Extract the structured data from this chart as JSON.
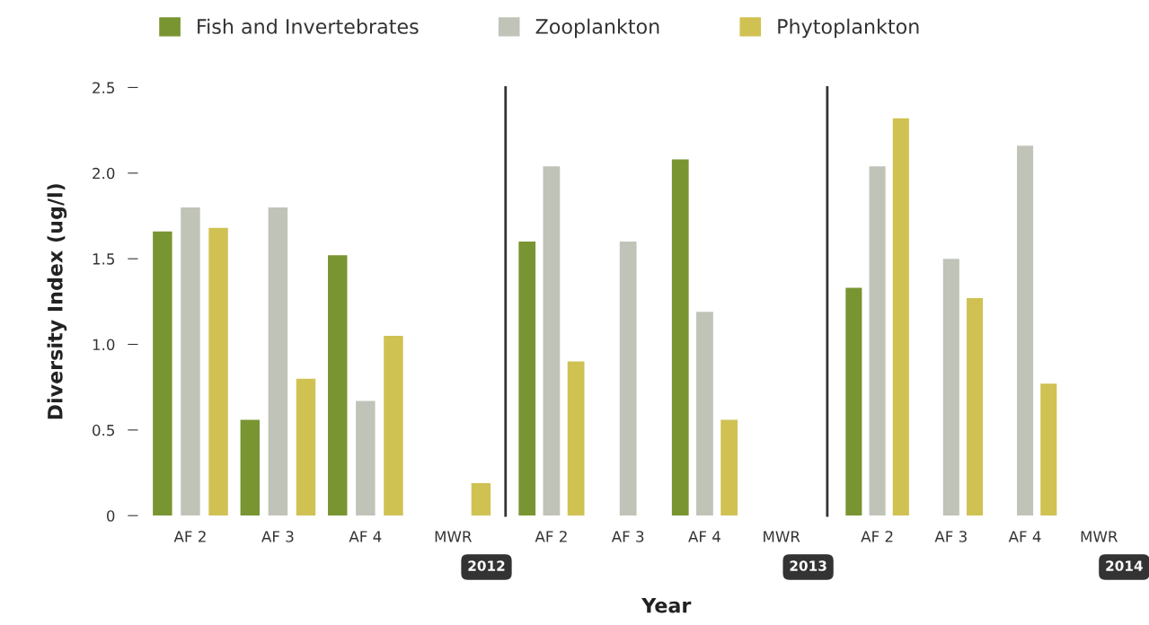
{
  "chart_data": [
    {
      "type": "bar",
      "title": "2012",
      "ylabel": "Diversity Index (ug/l)",
      "categories": [
        "AF 2",
        "AF 3",
        "AF 4",
        "MWR"
      ],
      "ylim": [
        0,
        2.5
      ],
      "yticks": [
        {
          "value": 0,
          "label": "0"
        },
        {
          "value": 0.5,
          "label": "0.5"
        },
        {
          "value": 1.0,
          "label": "1.0"
        },
        {
          "value": 1.5,
          "label": "1.5"
        },
        {
          "value": 2.0,
          "label": "2.0"
        },
        {
          "value": 2.5,
          "label": "2.5"
        }
      ],
      "legend": "top",
      "grid": false,
      "series": [
        {
          "name": "Fish and Invertebrates",
          "color": "#789532",
          "values": [
            1.66,
            0.56,
            1.52,
            null
          ]
        },
        {
          "name": "Zooplankton",
          "color": "#c0c3b8",
          "values": [
            1.8,
            1.8,
            0.67,
            null
          ]
        },
        {
          "name": "Phytoplankton",
          "color": "#d0c153",
          "values": [
            1.68,
            0.8,
            1.05,
            0.19
          ]
        }
      ]
    },
    {
      "type": "bar",
      "title": "2013",
      "xlabel": "Year",
      "categories": [
        "AF 2",
        "AF 3",
        "AF 4",
        "MWR"
      ],
      "ylim": [
        0,
        2.5
      ],
      "tick_labels": "x",
      "grid": false,
      "series": [
        {
          "color": "#789532",
          "values": [
            1.6,
            null,
            2.08,
            null
          ]
        },
        {
          "color": "#c0c3b8",
          "values": [
            2.04,
            1.6,
            1.19,
            null
          ]
        },
        {
          "color": "#d0c153",
          "values": [
            0.9,
            null,
            0.56,
            null
          ]
        }
      ]
    },
    {
      "type": "bar",
      "title": "2014",
      "categories": [
        "AF 2",
        "AF 3",
        "AF 4",
        "MWR"
      ],
      "ylim": [
        0,
        2.5
      ],
      "tick_labels": "x",
      "grid": false,
      "series": [
        {
          "color": "#789532",
          "values": [
            1.33,
            null,
            null,
            null
          ]
        },
        {
          "color": "#c0c3b8",
          "values": [
            2.04,
            1.5,
            2.16,
            null
          ]
        },
        {
          "color": "#d0c153",
          "values": [
            2.32,
            1.27,
            0.77,
            null
          ]
        }
      ]
    }
  ]
}
